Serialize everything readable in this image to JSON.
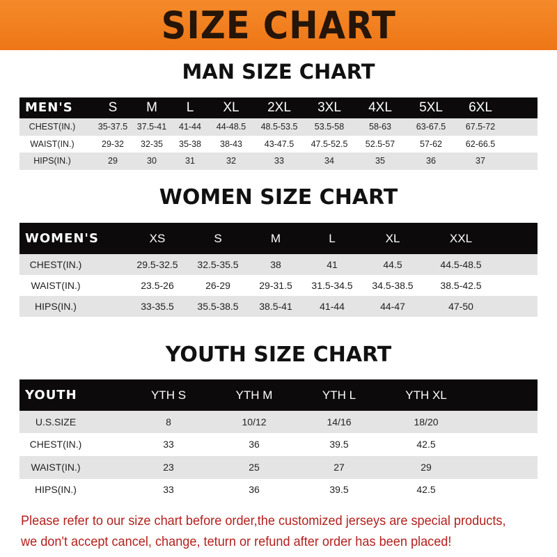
{
  "title": "SIZE CHART",
  "men": {
    "title": "MAN SIZE CHART",
    "header": "MEN'S",
    "sizes": [
      "S",
      "M",
      "L",
      "XL",
      "2XL",
      "3XL",
      "4XL",
      "5XL",
      "6XL"
    ],
    "rows": [
      {
        "label": "CHEST(IN.)",
        "values": [
          "35-37.5",
          "37.5-41",
          "41-44",
          "44-48.5",
          "48.5-53.5",
          "53.5-58",
          "58-63",
          "63-67.5",
          "67.5-72"
        ]
      },
      {
        "label": "WAIST(IN.)",
        "values": [
          "29-32",
          "32-35",
          "35-38",
          "38-43",
          "43-47.5",
          "47.5-52.5",
          "52.5-57",
          "57-62",
          "62-66.5"
        ]
      },
      {
        "label": "HIPS(IN.)",
        "values": [
          "29",
          "30",
          "31",
          "32",
          "33",
          "34",
          "35",
          "36",
          "37"
        ]
      }
    ]
  },
  "women": {
    "title": "WOMEN SIZE CHART",
    "header": "WOMEN'S",
    "sizes": [
      "XS",
      "S",
      "M",
      "L",
      "XL",
      "XXL"
    ],
    "rows": [
      {
        "label": "CHEST(IN.)",
        "values": [
          "29.5-32.5",
          "32.5-35.5",
          "38",
          "41",
          "44.5",
          "44.5-48.5"
        ]
      },
      {
        "label": "WAIST(IN.)",
        "values": [
          "23.5-26",
          "26-29",
          "29-31.5",
          "31.5-34.5",
          "34.5-38.5",
          "38.5-42.5"
        ]
      },
      {
        "label": "HIPS(IN.)",
        "values": [
          "33-35.5",
          "35.5-38.5",
          "38.5-41",
          "41-44",
          "44-47",
          "47-50"
        ]
      }
    ]
  },
  "youth": {
    "title": "YOUTH SIZE CHART",
    "header": "YOUTH",
    "sizes": [
      "YTH S",
      "YTH M",
      "YTH L",
      "YTH XL"
    ],
    "rows": [
      {
        "label": "U.S.SIZE",
        "values": [
          "8",
          "10/12",
          "14/16",
          "18/20"
        ]
      },
      {
        "label": "CHEST(IN.)",
        "values": [
          "33",
          "36",
          "39.5",
          "42.5"
        ]
      },
      {
        "label": "WAIST(IN.)",
        "values": [
          "23",
          "25",
          "27",
          "29"
        ]
      },
      {
        "label": "HIPS(IN.)",
        "values": [
          "33",
          "36",
          "39.5",
          "42.5"
        ]
      }
    ]
  },
  "notice": [
    "Please refer to our size chart before order,the customized jerseys are special products,",
    "we don't accept cancel, change, teturn or refund after order has been placed!"
  ]
}
